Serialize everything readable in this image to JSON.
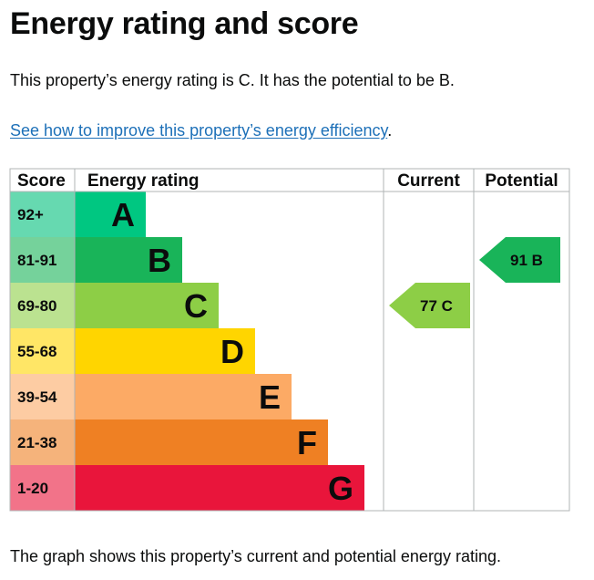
{
  "page": {
    "title": "Energy rating and score",
    "intro": "This property’s energy rating is C. It has the potential to be B.",
    "improve_link": "See how to improve this property’s energy efficiency",
    "improve_suffix": ".",
    "caption": "The graph shows this property’s current and potential energy rating."
  },
  "chart_data": {
    "type": "bar",
    "headers": {
      "score": "Score",
      "rating": "Energy rating",
      "current": "Current",
      "potential": "Potential"
    },
    "bands": [
      {
        "letter": "A",
        "range": "92+",
        "min": 92,
        "max": 100,
        "color": "#00c781",
        "score_bg": "#66d9b0"
      },
      {
        "letter": "B",
        "range": "81-91",
        "min": 81,
        "max": 91,
        "color": "#19b459",
        "score_bg": "#75d29b"
      },
      {
        "letter": "C",
        "range": "69-80",
        "min": 69,
        "max": 80,
        "color": "#8dce46",
        "score_bg": "#bbe290"
      },
      {
        "letter": "D",
        "range": "55-68",
        "min": 55,
        "max": 68,
        "color": "#ffd500",
        "score_bg": "#ffe666"
      },
      {
        "letter": "E",
        "range": "39-54",
        "min": 39,
        "max": 54,
        "color": "#fcaa65",
        "score_bg": "#fdcca3"
      },
      {
        "letter": "F",
        "range": "21-38",
        "min": 21,
        "max": 38,
        "color": "#ef8023",
        "score_bg": "#f5b37b"
      },
      {
        "letter": "G",
        "range": "1-20",
        "min": 1,
        "max": 20,
        "color": "#e9153b",
        "score_bg": "#f27389"
      }
    ],
    "current": {
      "score": 77,
      "letter": "C",
      "label": "77 C",
      "color": "#8dce46"
    },
    "potential": {
      "score": 91,
      "letter": "B",
      "label": "91 B",
      "color": "#19b459"
    }
  }
}
